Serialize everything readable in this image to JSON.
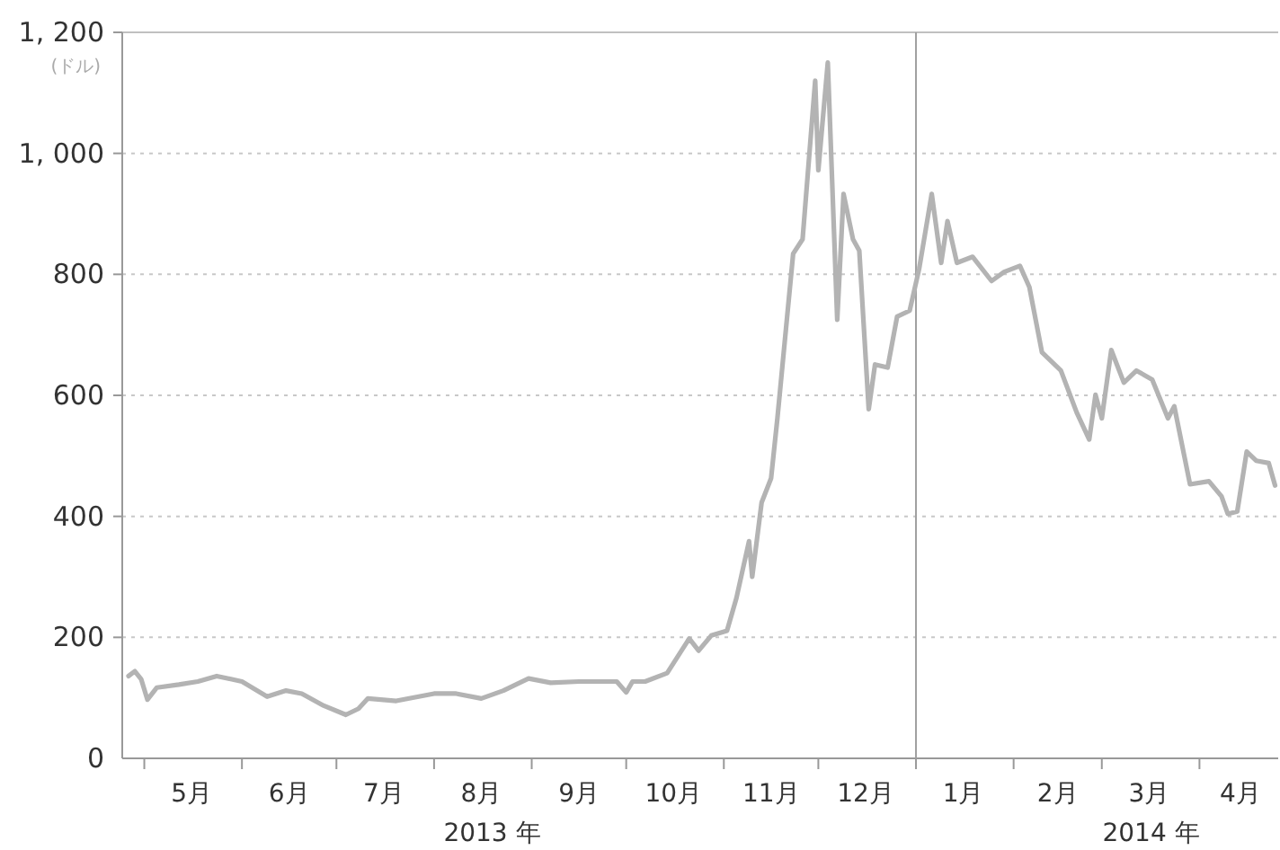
{
  "chart_data": {
    "type": "line",
    "ylabel": "(ドル)",
    "annotations": [
      "2013 年",
      "2014 年"
    ],
    "xlim": [
      "2013-04-24",
      "2014-04-26"
    ],
    "ylim": [
      0,
      1200
    ],
    "yticks": [
      0,
      200,
      400,
      600,
      800,
      {
        "value": 1000,
        "label": "1, 000"
      },
      {
        "value": 1200,
        "label": "1, 200"
      }
    ],
    "xticks": [
      {
        "value": "2013-05-16",
        "label": "5月"
      },
      {
        "value": "2013-06-16",
        "label": "6月"
      },
      {
        "value": "2013-07-16",
        "label": "7月"
      },
      {
        "value": "2013-08-16",
        "label": "8月"
      },
      {
        "value": "2013-09-16",
        "label": "9月"
      },
      {
        "value": "2013-10-16",
        "label": "10月"
      },
      {
        "value": "2013-11-16",
        "label": "11月"
      },
      {
        "value": "2013-12-16",
        "label": "12月"
      },
      {
        "value": "2014-01-16",
        "label": "1月"
      },
      {
        "value": "2014-02-15",
        "label": "2月"
      },
      {
        "value": "2014-03-16",
        "label": "3月"
      },
      {
        "value": "2014-04-14",
        "label": "4月"
      }
    ],
    "grid": "y",
    "line_style": "solid",
    "ref_lines": [
      {
        "axis": "x",
        "value": "2014-01-01",
        "color": "#a0a0a0"
      }
    ],
    "series": [
      {
        "color": "#b3b3b3",
        "x": [
          "2013-04-26",
          "2013-04-28",
          "2013-04-30",
          "2013-05-02",
          "2013-05-05",
          "2013-05-12",
          "2013-05-18",
          "2013-05-24",
          "2013-06-01",
          "2013-06-09",
          "2013-06-15",
          "2013-06-20",
          "2013-06-27",
          "2013-07-04",
          "2013-07-08",
          "2013-07-11",
          "2013-07-20",
          "2013-08-01",
          "2013-08-08",
          "2013-08-16",
          "2013-08-23",
          "2013-08-31",
          "2013-09-07",
          "2013-09-16",
          "2013-09-28",
          "2013-10-01",
          "2013-10-03",
          "2013-10-07",
          "2013-10-14",
          "2013-10-21",
          "2013-10-24",
          "2013-10-28",
          "2013-11-02",
          "2013-11-05",
          "2013-11-09",
          "2013-11-10",
          "2013-11-13",
          "2013-11-16",
          "2013-11-18",
          "2013-11-23",
          "2013-11-26",
          "2013-11-30",
          "2013-12-01",
          "2013-12-04",
          "2013-12-07",
          "2013-12-09",
          "2013-12-12",
          "2013-12-14",
          "2013-12-17",
          "2013-12-19",
          "2013-12-23",
          "2013-12-26",
          "2013-12-30",
          "2014-01-02",
          "2014-01-06",
          "2014-01-09",
          "2014-01-11",
          "2014-01-14",
          "2014-01-19",
          "2014-01-25",
          "2014-01-29",
          "2014-02-03",
          "2014-02-06",
          "2014-02-10",
          "2014-02-16",
          "2014-02-21",
          "2014-02-25",
          "2014-02-27",
          "2014-03-01",
          "2014-03-04",
          "2014-03-08",
          "2014-03-12",
          "2014-03-17",
          "2014-03-22",
          "2014-03-24",
          "2014-03-29",
          "2014-04-04",
          "2014-04-08",
          "2014-04-10",
          "2014-04-13",
          "2014-04-16",
          "2014-04-19",
          "2014-04-23",
          "2014-04-25"
        ],
        "values": [
          136,
          144,
          131,
          97,
          117,
          122,
          127,
          136,
          127,
          102,
          112,
          107,
          87,
          72,
          82,
          99,
          95,
          107,
          107,
          99,
          112,
          132,
          125,
          127,
          127,
          109,
          127,
          127,
          141,
          198,
          178,
          203,
          211,
          265,
          359,
          300,
          423,
          463,
          562,
          834,
          858,
          1120,
          972,
          1150,
          725,
          933,
          858,
          839,
          577,
          651,
          646,
          730,
          740,
          809,
          933,
          819,
          888,
          819,
          829,
          789,
          804,
          814,
          779,
          671,
          641,
          572,
          527,
          601,
          562,
          675,
          621,
          641,
          626,
          562,
          582,
          453,
          458,
          433,
          404,
          408,
          507,
          492,
          488,
          451
        ]
      }
    ]
  }
}
